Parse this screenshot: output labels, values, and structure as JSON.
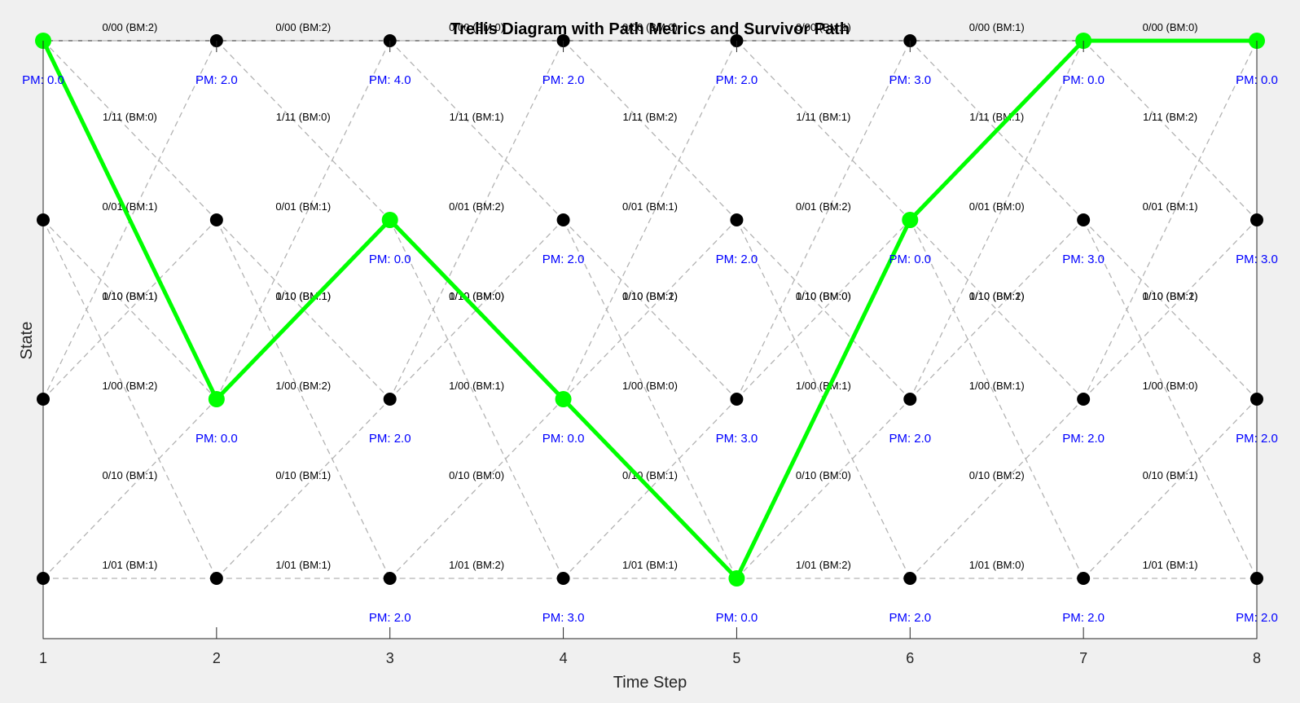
{
  "chart_data": {
    "type": "trellis",
    "title": "Trellis Diagram with Path Metrics and Survivor Path",
    "xlabel": "Time Step",
    "ylabel": "State",
    "x_ticks": [
      "1",
      "2",
      "3",
      "4",
      "5",
      "6",
      "7",
      "8"
    ],
    "num_states": 4,
    "time_steps": [
      1,
      2,
      3,
      4,
      5,
      6,
      7,
      8
    ],
    "states_top_to_bottom": [
      0,
      1,
      2,
      3
    ],
    "branch_labels": [
      {
        "from": 0,
        "to": 0,
        "labels": [
          "0/00 (BM:2)",
          "0/00 (BM:2)",
          "0/00 (BM:0)",
          "0/00 (BM:0)",
          "0/00 (BM:1)",
          "0/00 (BM:1)",
          "0/00 (BM:0)"
        ]
      },
      {
        "from": 2,
        "to": 0,
        "labels": [
          "0/01 (BM:1)",
          "0/01 (BM:1)",
          "0/01 (BM:2)",
          "0/01 (BM:1)",
          "0/01 (BM:2)",
          "0/01 (BM:0)",
          "0/01 (BM:1)"
        ]
      },
      {
        "from": 0,
        "to": 1,
        "labels": [
          "1/11 (BM:0)",
          "1/11 (BM:0)",
          "1/11 (BM:1)",
          "1/11 (BM:2)",
          "1/11 (BM:1)",
          "1/11 (BM:1)",
          "1/11 (BM:2)"
        ]
      },
      {
        "from": 2,
        "to": 1,
        "labels": [
          "1/10 (BM:1)",
          "1/10 (BM:1)",
          "1/10 (BM:0)",
          "1/10 (BM:1)",
          "1/10 (BM:0)",
          "1/10 (BM:2)",
          "1/10 (BM:1)"
        ]
      },
      {
        "from": 1,
        "to": 2,
        "labels": [
          "0/10 (BM:1)",
          "0/10 (BM:1)",
          "0/10 (BM:0)",
          "0/10 (BM:2)",
          "0/10 (BM:0)",
          "0/10 (BM:1)",
          "0/10 (BM:2)"
        ]
      },
      {
        "from": 3,
        "to": 2,
        "labels": [
          "0/10 (BM:1)",
          "0/10 (BM:1)",
          "0/10 (BM:0)",
          "0/10 (BM:1)",
          "0/10 (BM:0)",
          "0/10 (BM:2)",
          "0/10 (BM:1)"
        ]
      },
      {
        "from": 1,
        "to": 3,
        "labels": [
          "1/00 (BM:2)",
          "1/00 (BM:2)",
          "1/00 (BM:1)",
          "1/00 (BM:0)",
          "1/00 (BM:1)",
          "1/00 (BM:1)",
          "1/00 (BM:0)"
        ]
      },
      {
        "from": 3,
        "to": 3,
        "labels": [
          "1/01 (BM:1)",
          "1/01 (BM:1)",
          "1/01 (BM:2)",
          "1/01 (BM:1)",
          "1/01 (BM:2)",
          "1/01 (BM:0)",
          "1/01 (BM:1)"
        ]
      }
    ],
    "path_metrics": [
      [
        "PM: 0.0",
        "",
        "",
        ""
      ],
      [
        "PM: 2.0",
        "",
        "PM: 0.0",
        ""
      ],
      [
        "PM: 4.0",
        "PM: 0.0",
        "PM: 2.0",
        "PM: 2.0"
      ],
      [
        "PM: 2.0",
        "PM: 2.0",
        "PM: 0.0",
        "PM: 3.0"
      ],
      [
        "PM: 2.0",
        "PM: 2.0",
        "PM: 3.0",
        "PM: 0.0"
      ],
      [
        "PM: 3.0",
        "PM: 0.0",
        "PM: 2.0",
        "PM: 2.0"
      ],
      [
        "PM: 0.0",
        "PM: 3.0",
        "PM: 2.0",
        "PM: 2.0"
      ],
      [
        "PM: 0.0",
        "PM: 3.0",
        "PM: 2.0",
        "PM: 2.0"
      ]
    ],
    "survivor_path_states": [
      0,
      2,
      1,
      2,
      3,
      1,
      0,
      0
    ],
    "grid": false,
    "legend": "none"
  },
  "colors": {
    "background": "#f0f0f0",
    "axes": "#ffffff",
    "branch": "#b3b3b3",
    "node": "#000000",
    "survivor": "#00ff00",
    "path_metric": "#0000ff"
  }
}
